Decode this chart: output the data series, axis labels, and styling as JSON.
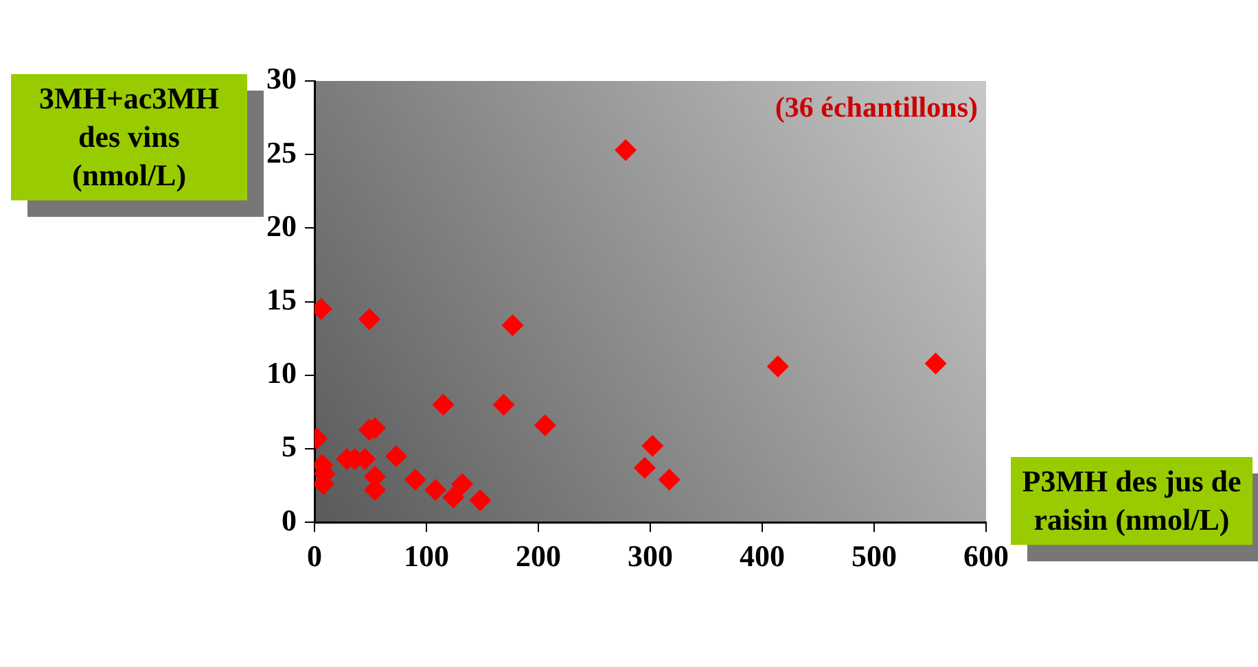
{
  "chart_data": {
    "type": "scatter",
    "xlabel": "P3MH des jus de raisin (nmol/L)",
    "ylabel": "3MH+ac3MH des vins (nmol/L)",
    "annotations": [
      "(36 échantillons)"
    ],
    "series": [
      {
        "color": "#ff0000",
        "x": [
          6,
          49,
          278,
          177,
          115,
          169,
          206,
          2,
          49,
          54,
          7,
          9,
          8,
          29,
          36,
          45,
          73,
          54,
          54,
          90,
          108,
          124,
          132,
          148,
          295,
          302,
          317,
          414,
          555
        ],
        "values": [
          14.5,
          13.8,
          25.3,
          13.4,
          8.0,
          8.0,
          6.6,
          5.7,
          6.3,
          6.4,
          3.9,
          3.3,
          2.6,
          4.3,
          4.3,
          4.3,
          4.5,
          3.1,
          2.2,
          2.9,
          2.2,
          1.7,
          2.6,
          1.5,
          3.7,
          5.2,
          2.9,
          10.6,
          10.8
        ]
      }
    ],
    "xlim": [
      0,
      600
    ],
    "xticks": [
      0,
      100,
      200,
      300,
      400,
      500,
      600
    ],
    "ylim": [
      0,
      30
    ],
    "yticks": [
      0,
      5,
      10,
      15,
      20,
      25,
      30
    ],
    "grid": false,
    "legend": false,
    "marker": "diamond"
  }
}
